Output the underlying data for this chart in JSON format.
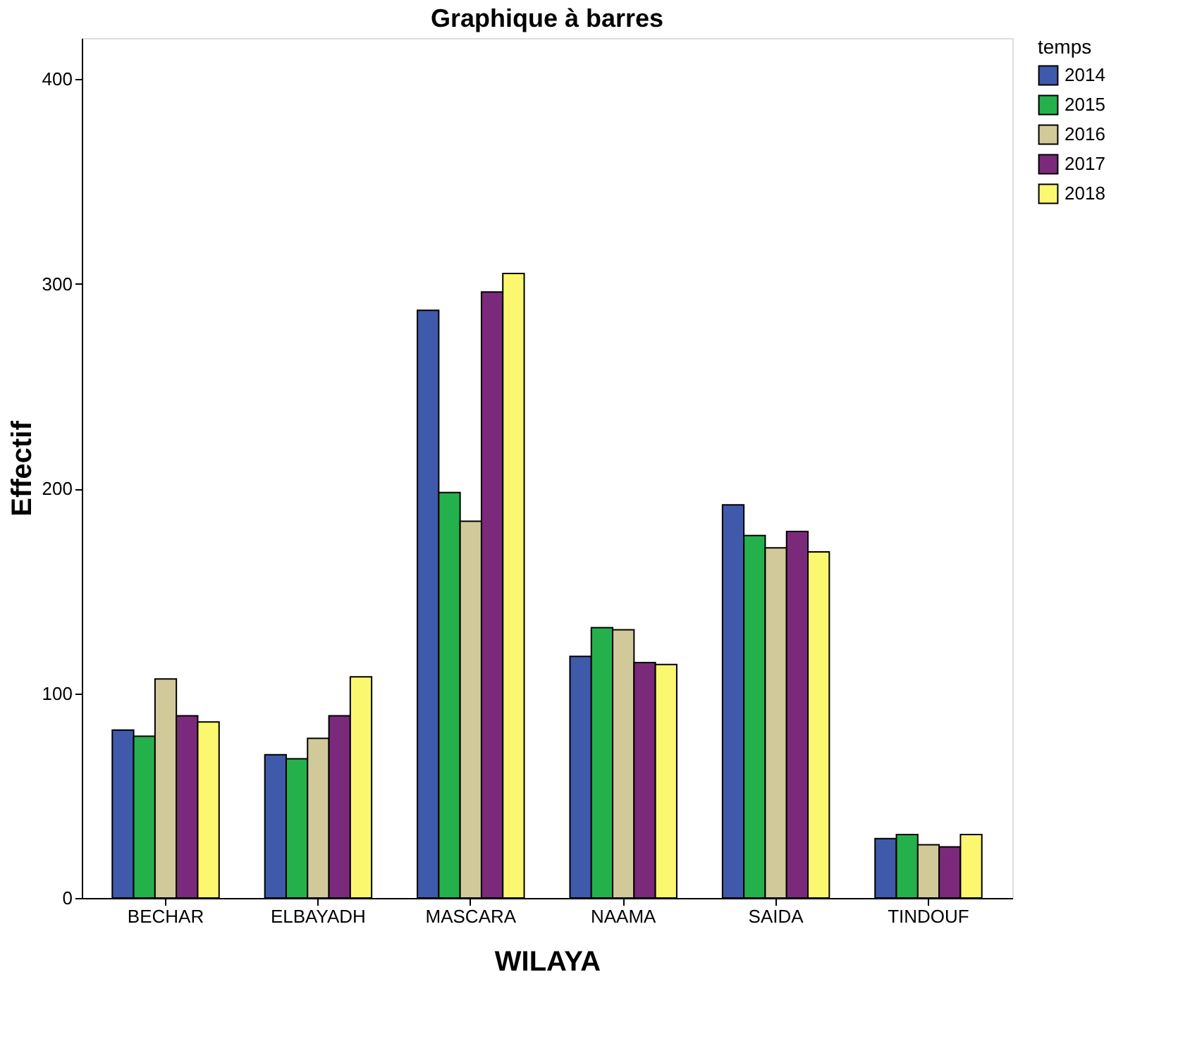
{
  "chart_data": {
    "type": "bar",
    "title": "Graphique à barres",
    "xlabel": "WILAYA",
    "ylabel": "Effectif",
    "legend_title": "temps",
    "legend": "top right",
    "grid": false,
    "categories": [
      "BECHAR",
      "ELBAYADH",
      "MASCARA",
      "NAAMA",
      "SAIDA",
      "TINDOUF"
    ],
    "series": [
      {
        "name": "2014",
        "color": "#3f5aab",
        "values": [
          82,
          70,
          287,
          118,
          192,
          29
        ]
      },
      {
        "name": "2015",
        "color": "#24b14b",
        "values": [
          79,
          68,
          198,
          132,
          177,
          31
        ]
      },
      {
        "name": "2016",
        "color": "#d2c99a",
        "values": [
          107,
          78,
          184,
          131,
          171,
          26
        ]
      },
      {
        "name": "2017",
        "color": "#7b2a7b",
        "values": [
          89,
          89,
          296,
          115,
          179,
          25
        ]
      },
      {
        "name": "2018",
        "color": "#fbf870",
        "values": [
          86,
          108,
          305,
          114,
          169,
          31
        ]
      }
    ],
    "ylim": [
      0,
      420
    ],
    "yticks": [
      0,
      100,
      200,
      300,
      400
    ]
  }
}
